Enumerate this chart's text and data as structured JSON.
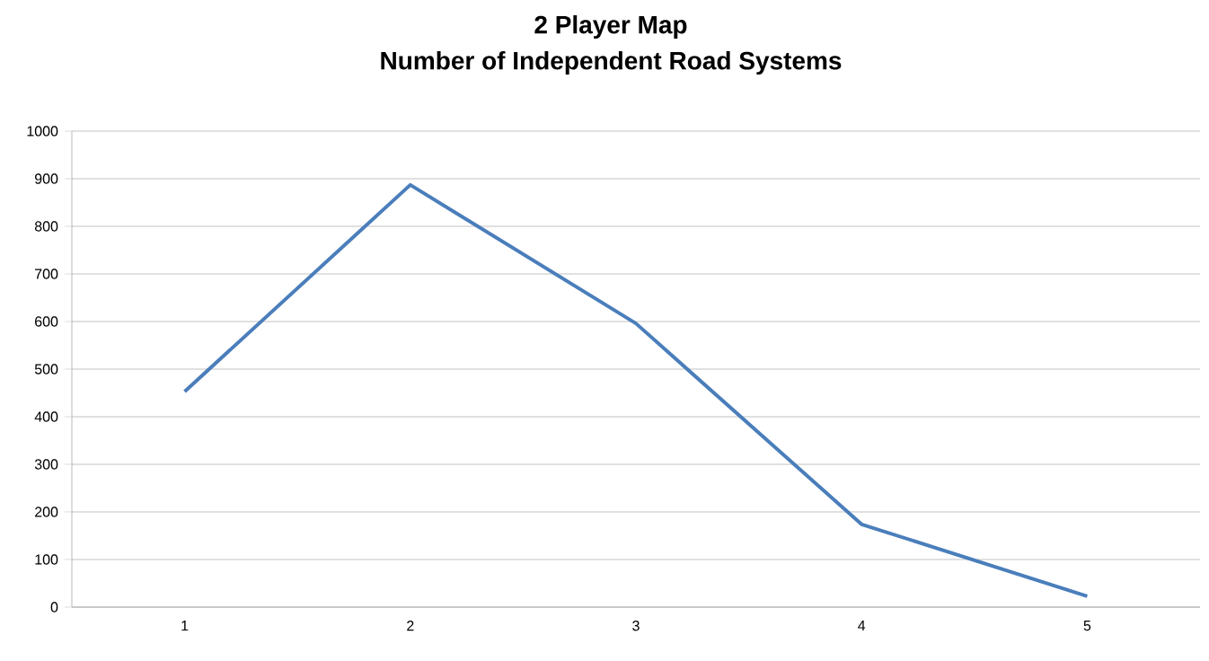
{
  "chart_data": {
    "type": "line",
    "title": "2 Player Map",
    "subtitle": "Number of Independent Road Systems",
    "categories": [
      "1",
      "2",
      "3",
      "4",
      "5"
    ],
    "series": [
      {
        "color": "#4a7ebb",
        "values": [
          453,
          887,
          596,
          174,
          23
        ]
      }
    ],
    "ylim": [
      0,
      1000
    ],
    "yticks": [
      0,
      100,
      200,
      300,
      400,
      500,
      600,
      700,
      800,
      900,
      1000
    ],
    "grid": "y",
    "marker": "none",
    "line_style": "solid"
  }
}
